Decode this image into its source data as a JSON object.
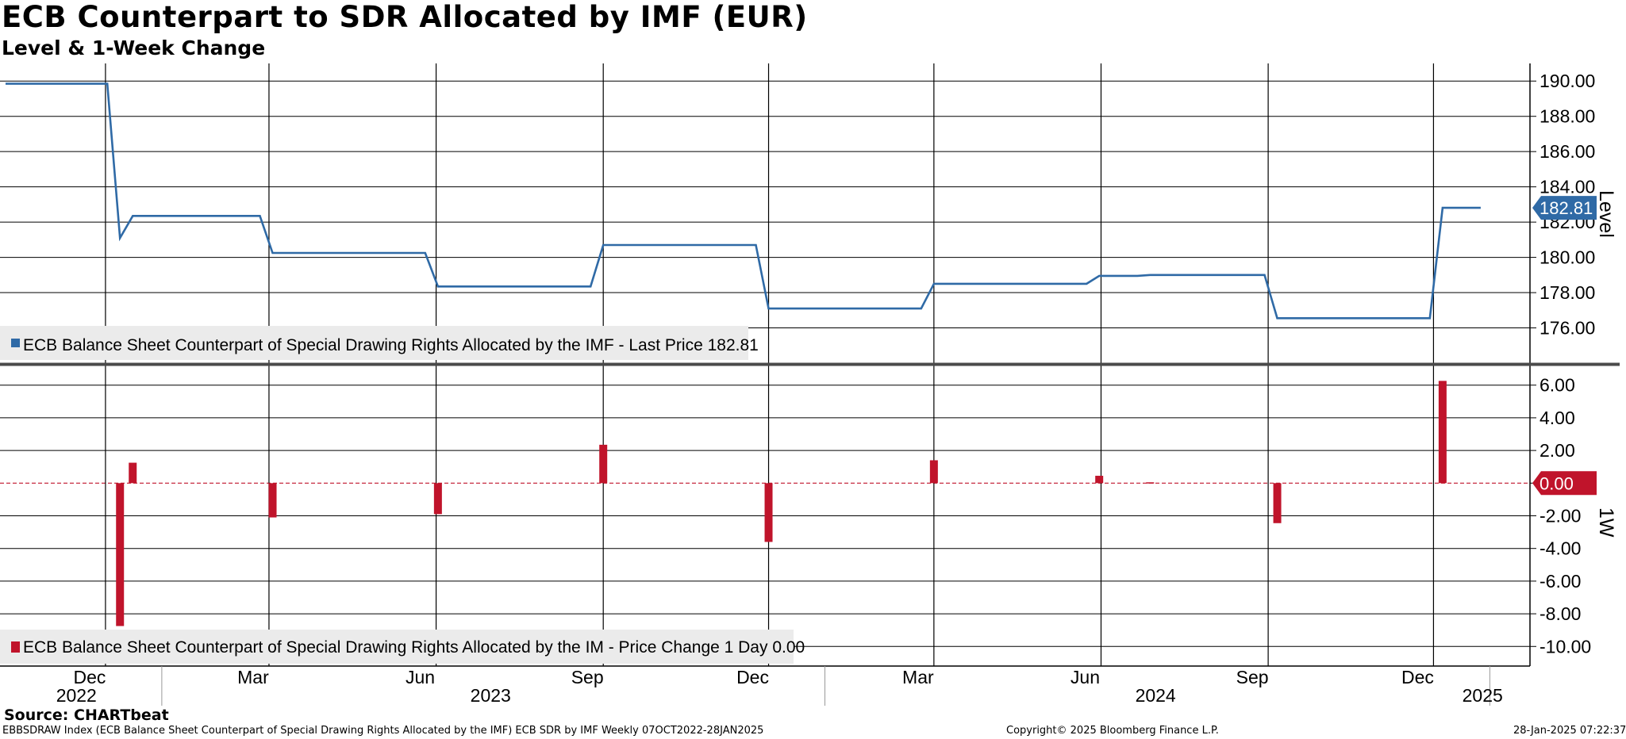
{
  "header": {
    "title": "ECB Counterpart to SDR Allocated by IMF (EUR)",
    "subtitle": "Level & 1-Week Change"
  },
  "footer": {
    "source": "Source: CHARTbeat",
    "index_info": "EBBSDRAW Index (ECB Balance Sheet Counterpart of Special Drawing Rights Allocated by the IMF) ECB SDR by IMF  Weekly 07OCT2022-28JAN2025",
    "copyright": "Copyright© 2025 Bloomberg Finance L.P.",
    "timestamp": "28-Jan-2025 07:22:37"
  },
  "colors": {
    "level_line": "#2f6aa6",
    "change_bars": "#c0142b",
    "grid": "#000000",
    "legend_box": "#ebebeb",
    "panel_divider": "#4a4a4a"
  },
  "chart_data": [
    {
      "type": "line",
      "panel": "top",
      "ylabel": "Level",
      "ylim": [
        174.0,
        191.0
      ],
      "yticks": [
        "190.00",
        "188.00",
        "186.00",
        "184.00",
        "182.00",
        "180.00",
        "178.00",
        "176.00"
      ],
      "grid": true,
      "last_value_label": "182.81",
      "legend": {
        "placement": "bottom-left",
        "text": "ECB Balance Sheet Counterpart of Special Drawing Rights Allocated by the IMF - Last Price 182.81"
      },
      "series": [
        {
          "name": "ECB Balance Sheet Counterpart of Special Drawing Rights Allocated by the IMF",
          "points": [
            [
              "2022-10-07",
              189.85
            ],
            [
              "2022-12-02",
              189.85
            ],
            [
              "2022-12-09",
              181.1
            ],
            [
              "2022-12-16",
              182.35
            ],
            [
              "2023-02-24",
              182.35
            ],
            [
              "2023-03-03",
              180.25
            ],
            [
              "2023-05-26",
              180.25
            ],
            [
              "2023-06-02",
              178.35
            ],
            [
              "2023-08-25",
              178.35
            ],
            [
              "2023-09-01",
              180.7
            ],
            [
              "2023-11-24",
              180.7
            ],
            [
              "2023-12-01",
              177.1
            ],
            [
              "2024-02-23",
              177.1
            ],
            [
              "2024-03-01",
              178.5
            ],
            [
              "2024-05-24",
              178.5
            ],
            [
              "2024-05-31",
              178.95
            ],
            [
              "2024-06-21",
              178.95
            ],
            [
              "2024-06-28",
              179.0
            ],
            [
              "2024-08-30",
              179.0
            ],
            [
              "2024-09-06",
              176.55
            ],
            [
              "2024-11-29",
              176.55
            ],
            [
              "2024-12-06",
              182.81
            ],
            [
              "2024-12-27",
              182.81
            ]
          ]
        }
      ]
    },
    {
      "type": "bar",
      "panel": "bottom",
      "ylabel": "1W",
      "ylim": [
        -11.2,
        7.2
      ],
      "yticks": [
        "6.00",
        "4.00",
        "2.00",
        "0.00",
        "-2.00",
        "-4.00",
        "-6.00",
        "-8.00",
        "-10.00"
      ],
      "grid": true,
      "last_value_label": "0.00",
      "legend": {
        "placement": "bottom-left",
        "text": "ECB Balance Sheet Counterpart of Special Drawing Rights Allocated by the IM - Price Change 1 Day 0.00"
      },
      "series": [
        {
          "name": "ECB Balance Sheet Counterpart of Special Drawing Rights Allocated by the IM - Price Change 1 Day",
          "points": [
            [
              "2022-12-09",
              -8.75
            ],
            [
              "2022-12-16",
              1.25
            ],
            [
              "2023-03-03",
              -2.1
            ],
            [
              "2023-06-02",
              -1.9
            ],
            [
              "2023-09-01",
              2.35
            ],
            [
              "2023-12-01",
              -3.6
            ],
            [
              "2024-03-01",
              1.4
            ],
            [
              "2024-05-31",
              0.45
            ],
            [
              "2024-06-28",
              0.05
            ],
            [
              "2024-09-06",
              -2.45
            ],
            [
              "2024-12-06",
              6.26
            ]
          ]
        }
      ]
    }
  ],
  "x_axis": {
    "start": "2022-10-07",
    "end": "2025-01-10",
    "month_ticks": [
      {
        "date": "2022-12-01",
        "label": "Dec"
      },
      {
        "date": "2023-03-01",
        "label": "Mar"
      },
      {
        "date": "2023-06-01",
        "label": "Jun"
      },
      {
        "date": "2023-09-01",
        "label": "Sep"
      },
      {
        "date": "2023-12-01",
        "label": "Dec"
      },
      {
        "date": "2024-03-01",
        "label": "Mar"
      },
      {
        "date": "2024-06-01",
        "label": "Jun"
      },
      {
        "date": "2024-09-01",
        "label": "Sep"
      },
      {
        "date": "2024-12-01",
        "label": "Dec"
      }
    ],
    "year_labels": [
      {
        "date": "2022-11-15",
        "label": "2022"
      },
      {
        "date": "2023-07-01",
        "label": "2023"
      },
      {
        "date": "2024-07-01",
        "label": "2024"
      },
      {
        "date": "2024-12-28",
        "label": "2025"
      }
    ],
    "year_boundaries": [
      "2023-01-01",
      "2024-01-01",
      "2025-01-01"
    ]
  }
}
